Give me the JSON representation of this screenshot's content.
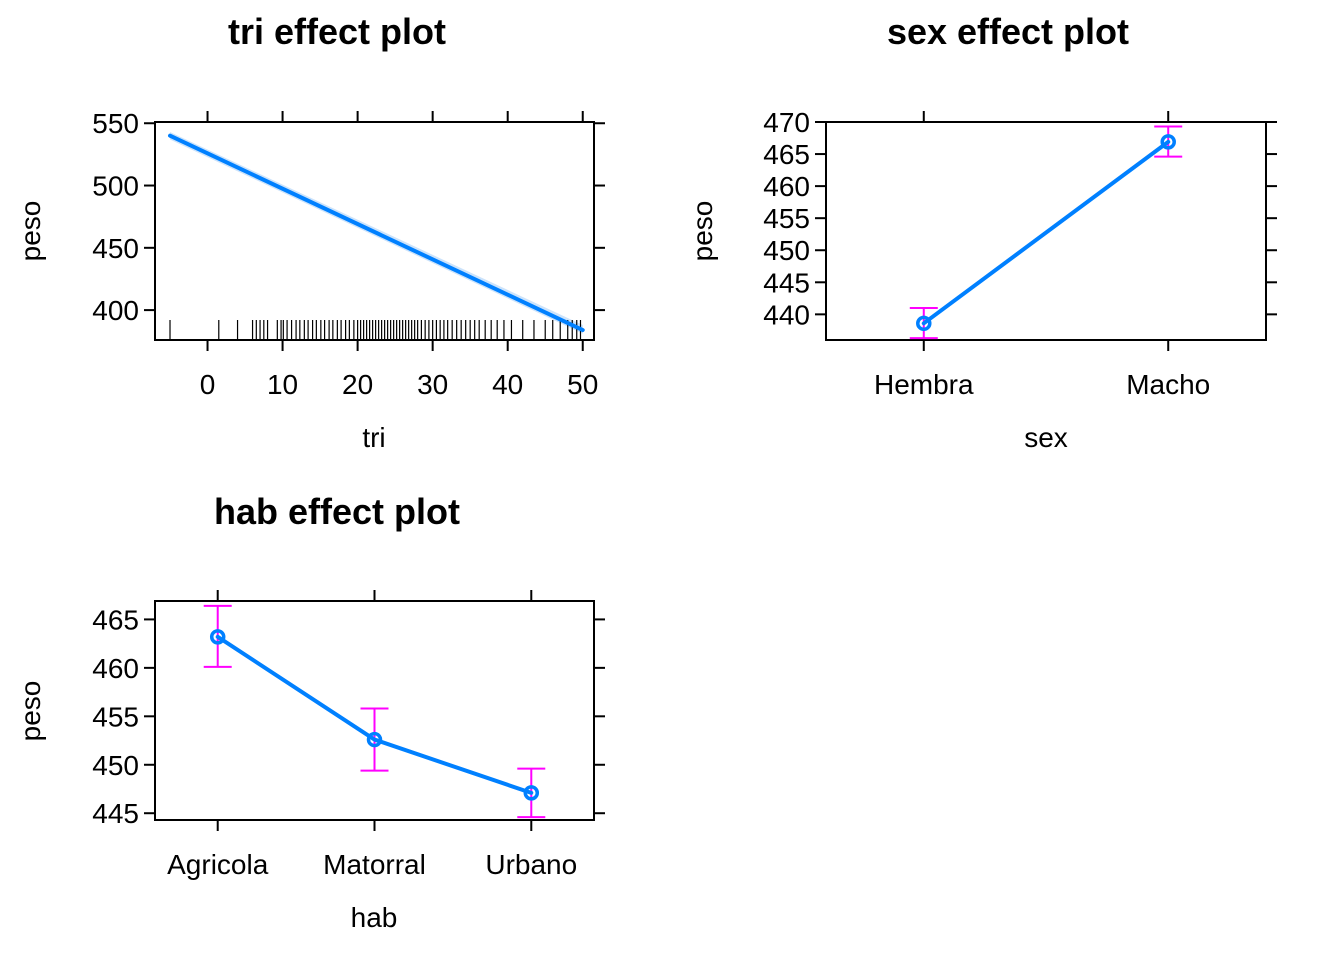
{
  "colors": {
    "fit": "#0080ff",
    "band": "#cce3fb",
    "error_bars": "#ff00ff",
    "frame": "#000000"
  },
  "chart_data": [
    {
      "type": "line",
      "title": "tri effect plot",
      "xlabel": "tri",
      "ylabel": "peso",
      "xlim": [
        -7,
        51.5
      ],
      "ylim": [
        376,
        551
      ],
      "x_ticks": [
        0,
        10,
        20,
        30,
        40,
        50
      ],
      "y_ticks": [
        400,
        450,
        500,
        550
      ],
      "series": [
        {
          "x": [
            -5,
            50
          ],
          "y": [
            540,
            384
          ]
        }
      ],
      "confidence_band": {
        "x": [
          -5,
          50
        ],
        "lower": [
          537,
          381
        ],
        "upper": [
          543,
          388
        ]
      },
      "rug_x": [
        -5,
        1.5,
        4,
        6,
        6.5,
        7,
        7.5,
        8,
        9.3,
        9.8,
        10.1,
        10.6,
        11.2,
        11.8,
        12.3,
        12.9,
        13.4,
        14,
        14.5,
        15.1,
        15.6,
        16.2,
        16.7,
        17.3,
        17.8,
        18.4,
        18.9,
        19.5,
        20,
        20.4,
        20.8,
        21.2,
        21.6,
        22,
        22.4,
        22.8,
        23.2,
        23.6,
        24,
        24.4,
        24.8,
        25.2,
        25.6,
        26,
        26.4,
        26.8,
        27.2,
        27.6,
        28,
        28.5,
        29,
        29.5,
        30,
        30.5,
        31,
        31.5,
        32,
        32.6,
        33.2,
        33.8,
        34.4,
        35,
        35.6,
        36.2,
        37,
        37.8,
        38.6,
        39.5,
        40.5,
        42,
        43.5,
        45,
        46,
        47,
        48,
        48.6,
        49.2,
        49.7
      ],
      "position": "top-left"
    },
    {
      "type": "line",
      "title": "sex effect plot",
      "xlabel": "sex",
      "ylabel": "peso",
      "categories": [
        "Hembra",
        "Macho"
      ],
      "ylim": [
        436,
        470
      ],
      "y_ticks": [
        440,
        445,
        450,
        455,
        460,
        465,
        470
      ],
      "values": [
        438.6,
        466.9
      ],
      "lower": [
        436.3,
        464.6
      ],
      "upper": [
        441.0,
        469.3
      ],
      "position": "top-right"
    },
    {
      "type": "line",
      "title": "hab effect plot",
      "xlabel": "hab",
      "ylabel": "peso",
      "categories": [
        "Agricola",
        "Matorral",
        "Urbano"
      ],
      "ylim": [
        444.3,
        466.9
      ],
      "y_ticks": [
        445,
        450,
        455,
        460,
        465
      ],
      "values": [
        463.2,
        452.6,
        447.1
      ],
      "lower": [
        460.1,
        449.4,
        444.6
      ],
      "upper": [
        466.4,
        455.8,
        449.6
      ],
      "position": "bottom-left"
    }
  ]
}
